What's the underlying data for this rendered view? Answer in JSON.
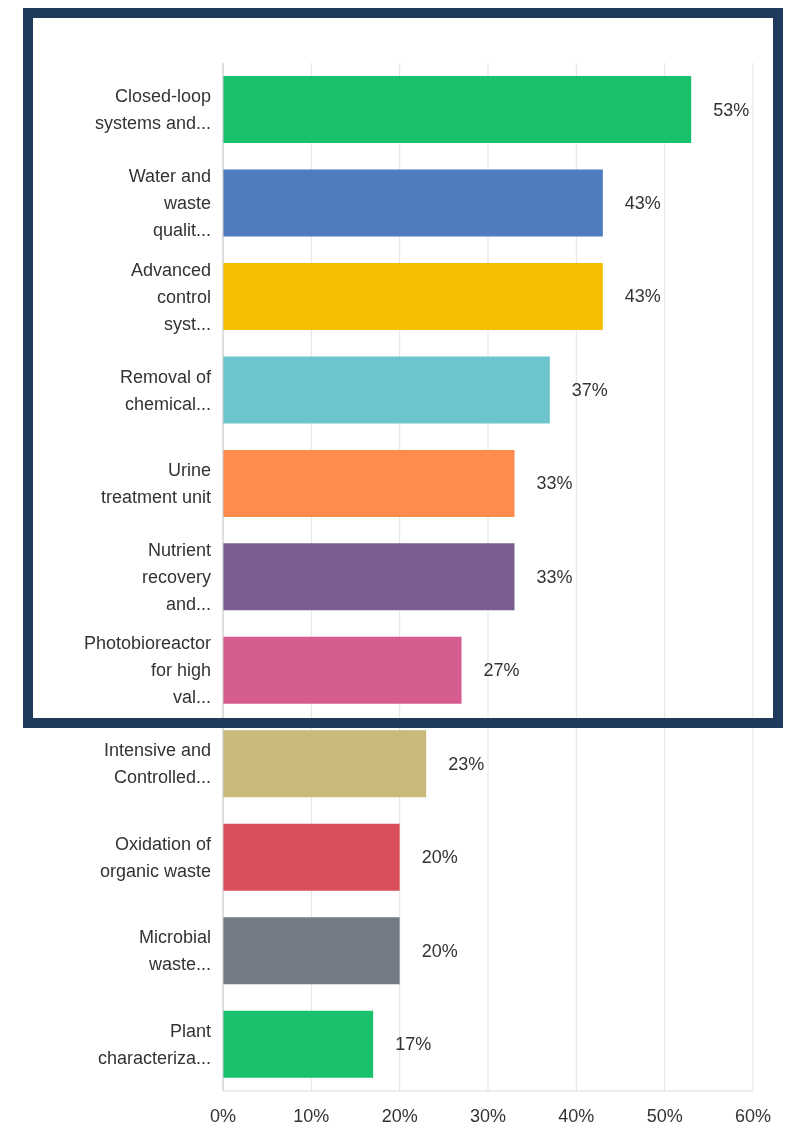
{
  "chart_data": {
    "type": "bar",
    "orientation": "horizontal",
    "categories": [
      "Closed-loop systems and...",
      "Water and waste qualit...",
      "Advanced control syst...",
      "Removal of chemical...",
      "Urine treatment unit",
      "Nutrient recovery and...",
      "Photobioreactor for high val...",
      "Intensive and Controlled...",
      "Oxidation of organic waste",
      "Microbial waste...",
      "Plant characteriza..."
    ],
    "values": [
      53,
      43,
      43,
      37,
      33,
      33,
      27,
      23,
      20,
      20,
      17
    ],
    "value_labels": [
      "53%",
      "43%",
      "43%",
      "37%",
      "33%",
      "33%",
      "27%",
      "23%",
      "20%",
      "20%",
      "17%"
    ],
    "colors": [
      "#19c16c",
      "#4f7cbf",
      "#f5be00",
      "#6cc5cc",
      "#ff8c4f",
      "#7b5e91",
      "#d45c8e",
      "#c9b97a",
      "#d94f5a",
      "#737c84",
      "#19c16c"
    ],
    "xlim": [
      0,
      60
    ],
    "xticks": [
      {
        "value": 0,
        "label": "0%"
      },
      {
        "value": 10,
        "label": "10%"
      },
      {
        "value": 20,
        "label": "20%"
      },
      {
        "value": 30,
        "label": "30%"
      },
      {
        "value": 40,
        "label": "40%"
      },
      {
        "value": 50,
        "label": "50%"
      },
      {
        "value": 60,
        "label": "60%"
      }
    ],
    "grid": "x",
    "legend": false
  }
}
